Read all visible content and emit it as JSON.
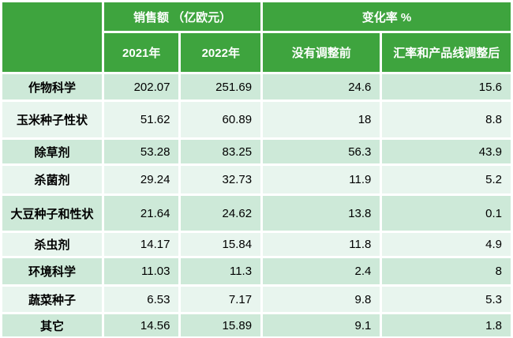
{
  "colors": {
    "header_green": "#3EA43E",
    "row_dark": "#CDE9D8",
    "row_light": "#E8F5EE",
    "header_text": "#FFFFFF",
    "body_text": "#000000",
    "grid_white": "#FFFFFF"
  },
  "chart_data": {
    "type": "table",
    "header": {
      "corner": "",
      "groups": [
        {
          "label": "销售额 （亿欧元）",
          "colspan": 2
        },
        {
          "label": "变化率 %",
          "colspan": 2
        }
      ],
      "columns": [
        "2021年",
        "2022年",
        "没有调整前",
        "汇率和产品线调整后"
      ]
    },
    "rows": [
      [
        "作物科学",
        202.07,
        251.69,
        24.6,
        15.6
      ],
      [
        "玉米种子性状",
        51.62,
        60.89,
        18,
        8.8
      ],
      [
        "除草剂",
        53.28,
        83.25,
        56.3,
        43.9
      ],
      [
        "杀菌剂",
        29.24,
        32.73,
        11.9,
        5.2
      ],
      [
        "大豆种子和性状",
        21.64,
        24.62,
        13.8,
        0.1
      ],
      [
        "杀虫剂",
        14.17,
        15.84,
        11.8,
        4.9
      ],
      [
        "环境科学",
        11.03,
        11.3,
        2.4,
        8
      ],
      [
        "蔬菜种子",
        6.53,
        7.17,
        9.8,
        5.3
      ],
      [
        "其它",
        14.56,
        15.89,
        9.1,
        1.8
      ]
    ]
  }
}
